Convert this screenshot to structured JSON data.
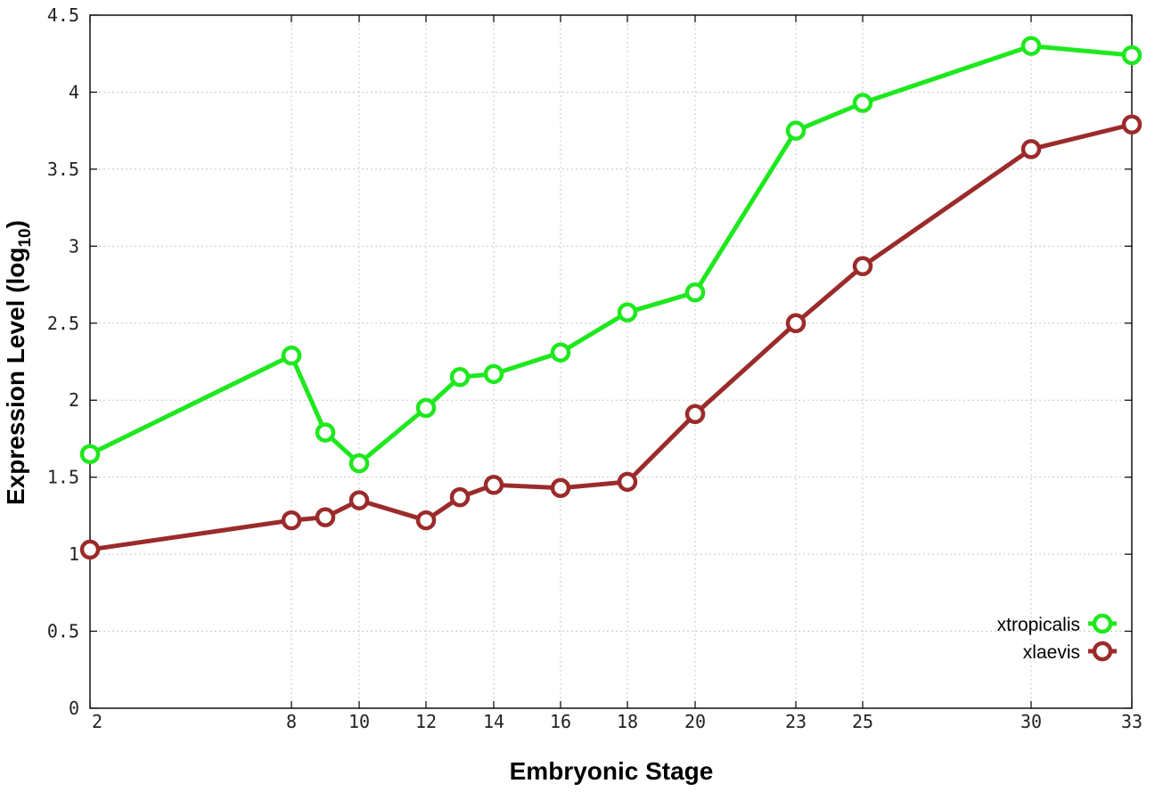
{
  "chart_data": {
    "type": "line",
    "title": "",
    "xlabel": "Embryonic Stage",
    "ylabel_main": "Expression Level (log",
    "ylabel_sub": "10",
    "ylabel_close": ")",
    "x_ticks": [
      "2",
      "8",
      "10",
      "12",
      "14",
      "16",
      "18",
      "20",
      "23",
      "25",
      "30",
      "33"
    ],
    "y_ticks": [
      "0",
      "0.5",
      "1",
      "1.5",
      "2",
      "2.5",
      "3",
      "3.5",
      "4",
      "4.5"
    ],
    "ylim": [
      0,
      4.5
    ],
    "grid": true,
    "legend_position": "bottom-right",
    "series": [
      {
        "name": "xtropicalis",
        "color": "#1ee81e",
        "points": [
          {
            "stage": 2,
            "value": 1.65
          },
          {
            "stage": 8,
            "value": 2.29
          },
          {
            "stage": 9,
            "value": 1.79
          },
          {
            "stage": 10,
            "value": 1.59
          },
          {
            "stage": 12,
            "value": 1.95
          },
          {
            "stage": 13,
            "value": 2.15
          },
          {
            "stage": 14,
            "value": 2.17
          },
          {
            "stage": 16,
            "value": 2.31
          },
          {
            "stage": 18,
            "value": 2.57
          },
          {
            "stage": 20,
            "value": 2.7
          },
          {
            "stage": 23,
            "value": 3.75
          },
          {
            "stage": 25,
            "value": 3.93
          },
          {
            "stage": 30,
            "value": 4.3
          },
          {
            "stage": 33,
            "value": 4.24
          }
        ]
      },
      {
        "name": "xlaevis",
        "color": "#9b2b2b",
        "points": [
          {
            "stage": 2,
            "value": 1.03
          },
          {
            "stage": 8,
            "value": 1.22
          },
          {
            "stage": 9,
            "value": 1.24
          },
          {
            "stage": 10,
            "value": 1.35
          },
          {
            "stage": 12,
            "value": 1.22
          },
          {
            "stage": 13,
            "value": 1.37
          },
          {
            "stage": 14,
            "value": 1.45
          },
          {
            "stage": 16,
            "value": 1.43
          },
          {
            "stage": 18,
            "value": 1.47
          },
          {
            "stage": 20,
            "value": 1.91
          },
          {
            "stage": 23,
            "value": 2.5
          },
          {
            "stage": 25,
            "value": 2.87
          },
          {
            "stage": 30,
            "value": 3.63
          },
          {
            "stage": 33,
            "value": 3.79
          }
        ]
      }
    ]
  }
}
